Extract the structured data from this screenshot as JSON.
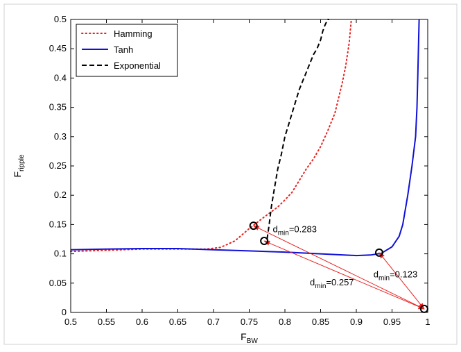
{
  "chart_data": {
    "type": "line",
    "xlabel_main": "F",
    "xlabel_sub": "BW",
    "ylabel_main": "F",
    "ylabel_sub": "ripple",
    "xlim": [
      0.5,
      1.0
    ],
    "ylim": [
      0,
      0.5
    ],
    "xticks": [
      0.5,
      0.55,
      0.6,
      0.65,
      0.7,
      0.75,
      0.8,
      0.85,
      0.9,
      0.95,
      1
    ],
    "yticks": [
      0,
      0.05,
      0.1,
      0.15,
      0.2,
      0.25,
      0.3,
      0.35,
      0.4,
      0.45,
      0.5
    ],
    "xtick_labels": [
      "0.5",
      "0.55",
      "0.6",
      "0.65",
      "0.7",
      "0.75",
      "0.8",
      "0.85",
      "0.9",
      "0.95",
      "1"
    ],
    "ytick_labels": [
      "0",
      "0.05",
      "0.1",
      "0.15",
      "0.2",
      "0.25",
      "0.3",
      "0.35",
      "0.4",
      "0.45",
      "0.5"
    ],
    "legend_position": "top-left",
    "series": [
      {
        "name": "Hamming",
        "style": "dotted",
        "color": "#e8201e",
        "x": [
          0.5,
          0.55,
          0.6,
          0.65,
          0.69,
          0.71,
          0.73,
          0.75,
          0.77,
          0.79,
          0.8,
          0.81,
          0.82,
          0.83,
          0.84,
          0.85,
          0.86,
          0.87,
          0.88,
          0.885,
          0.89,
          0.893
        ],
        "y": [
          0.104,
          0.106,
          0.108,
          0.108,
          0.108,
          0.111,
          0.122,
          0.143,
          0.162,
          0.18,
          0.192,
          0.205,
          0.225,
          0.245,
          0.262,
          0.283,
          0.31,
          0.34,
          0.39,
          0.42,
          0.46,
          0.5
        ]
      },
      {
        "name": "Tanh",
        "style": "solid",
        "color": "#1010d8",
        "x": [
          0.5,
          0.55,
          0.6,
          0.65,
          0.7,
          0.75,
          0.8,
          0.85,
          0.9,
          0.92,
          0.935,
          0.95,
          0.96,
          0.965,
          0.972,
          0.978,
          0.983,
          0.985,
          0.986,
          0.987,
          0.988
        ],
        "y": [
          0.107,
          0.108,
          0.109,
          0.109,
          0.107,
          0.105,
          0.103,
          0.1,
          0.097,
          0.098,
          0.101,
          0.112,
          0.13,
          0.15,
          0.2,
          0.25,
          0.3,
          0.35,
          0.4,
          0.45,
          0.5
        ]
      },
      {
        "name": "Exponential",
        "style": "dashed",
        "color": "#000000",
        "x": [
          0.775,
          0.778,
          0.781,
          0.785,
          0.79,
          0.795,
          0.8,
          0.805,
          0.81,
          0.815,
          0.82,
          0.825,
          0.83,
          0.835,
          0.84,
          0.845,
          0.85,
          0.853,
          0.856,
          0.858,
          0.86,
          0.862
        ],
        "y": [
          0.125,
          0.15,
          0.18,
          0.21,
          0.245,
          0.27,
          0.3,
          0.32,
          0.34,
          0.36,
          0.38,
          0.395,
          0.41,
          0.425,
          0.44,
          0.45,
          0.465,
          0.48,
          0.49,
          0.495,
          0.5,
          0.5
        ]
      }
    ],
    "markers": [
      {
        "x": 0.756,
        "y": 0.148
      },
      {
        "x": 0.771,
        "y": 0.122
      },
      {
        "x": 0.932,
        "y": 0.102
      },
      {
        "x": 0.995,
        "y": 0.006
      }
    ],
    "arrows": [
      {
        "from": [
          0.995,
          0.006
        ],
        "to": [
          0.756,
          0.148
        ],
        "double": true
      },
      {
        "from": [
          0.995,
          0.006
        ],
        "to": [
          0.771,
          0.122
        ],
        "double": true
      },
      {
        "from": [
          0.995,
          0.006
        ],
        "to": [
          0.932,
          0.102
        ],
        "double": true
      }
    ],
    "annotations": [
      {
        "main": "d",
        "sub": "min",
        "value": "=0.283",
        "x": 0.783,
        "y": 0.137
      },
      {
        "main": "d",
        "sub": "min",
        "value": "=0.257",
        "x": 0.835,
        "y": 0.046
      },
      {
        "main": "d",
        "sub": "min",
        "value": "=0.123",
        "x": 0.924,
        "y": 0.06
      }
    ]
  },
  "colors": {
    "hamming": "#e8201e",
    "tanh": "#1010d8",
    "exponential": "#000000",
    "arrow": "#e8201e"
  }
}
